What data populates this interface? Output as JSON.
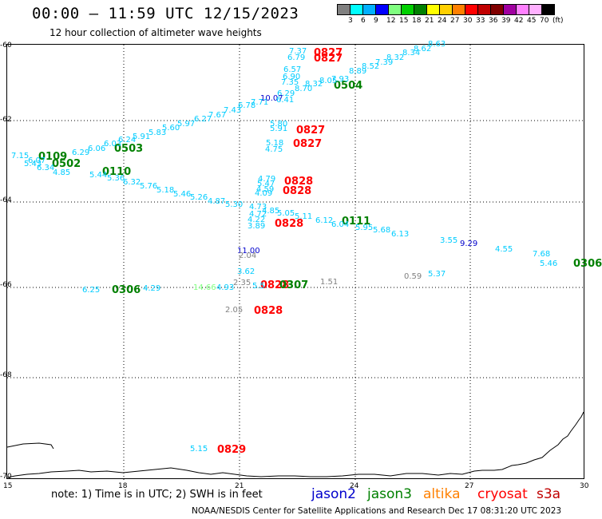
{
  "title": "00:00 – 11:59 UTC 12/15/2023",
  "subtitle": "12 hour collection of altimeter wave heights",
  "legend": {
    "colors": [
      "#808080",
      "#00ffff",
      "#00b0ff",
      "#0000ff",
      "#80ff80",
      "#00d000",
      "#008000",
      "#ffff00",
      "#ffd000",
      "#ff8000",
      "#ff0000",
      "#c00000",
      "#800000",
      "#a000a0",
      "#ff80ff",
      "#ffb0ff",
      "#000000"
    ],
    "labels": [
      "3",
      "6",
      "9",
      "12",
      "15",
      "18",
      "21",
      "24",
      "27",
      "30",
      "33",
      "36",
      "39",
      "42",
      "45",
      "70",
      "(ft)"
    ]
  },
  "axes": {
    "y_labels": [
      "-60",
      "-62",
      "-64",
      "-66",
      "-68",
      "-70"
    ],
    "x_labels": [
      "15",
      "18",
      "21",
      "24",
      "27",
      "30"
    ]
  },
  "passes": [
    {
      "text": "0827",
      "color": "#ff0000"
    },
    {
      "text": "0827",
      "color": "#ff0000"
    },
    {
      "text": "0504",
      "color": "#008000"
    },
    {
      "text": "0827",
      "color": "#ff0000"
    },
    {
      "text": "0827",
      "color": "#ff0000"
    },
    {
      "text": "0109",
      "color": "#008000"
    },
    {
      "text": "0503",
      "color": "#008000"
    },
    {
      "text": "0502",
      "color": "#008000"
    },
    {
      "text": "0110",
      "color": "#008000"
    },
    {
      "text": "0828",
      "color": "#ff0000"
    },
    {
      "text": "0828",
      "color": "#ff0000"
    },
    {
      "text": "0111",
      "color": "#008000"
    },
    {
      "text": "0828",
      "color": "#ff0000"
    },
    {
      "text": "0306",
      "color": "#008000"
    },
    {
      "text": "0306",
      "color": "#008000"
    },
    {
      "text": "0828",
      "color": "#ff0000"
    },
    {
      "text": "0307",
      "color": "#008000"
    },
    {
      "text": "0828",
      "color": "#ff0000"
    },
    {
      "text": "0829",
      "color": "#ff0000"
    }
  ],
  "points": [
    {
      "v": "7.37",
      "c": "#00ccff"
    },
    {
      "v": "6.79",
      "c": "#00ccff"
    },
    {
      "v": "8.63",
      "c": "#00ccff"
    },
    {
      "v": "8.62",
      "c": "#00ccff"
    },
    {
      "v": "8.34",
      "c": "#00ccff"
    },
    {
      "v": "8.32",
      "c": "#00ccff"
    },
    {
      "v": "7.39",
      "c": "#00ccff"
    },
    {
      "v": "8.52",
      "c": "#00ccff"
    },
    {
      "v": "8.89",
      "c": "#00ccff"
    },
    {
      "v": "6.57",
      "c": "#00ccff"
    },
    {
      "v": "6.90",
      "c": "#00ccff"
    },
    {
      "v": "7.93",
      "c": "#00ccff"
    },
    {
      "v": "8.05",
      "c": "#00ccff"
    },
    {
      "v": "7.35",
      "c": "#00ccff"
    },
    {
      "v": "8.32",
      "c": "#00ccff"
    },
    {
      "v": "8.70",
      "c": "#00ccff"
    },
    {
      "v": "6.29",
      "c": "#00ccff"
    },
    {
      "v": "10.07",
      "c": "#0000cc"
    },
    {
      "v": "6.41",
      "c": "#00ccff"
    },
    {
      "v": "7.71",
      "c": "#00ccff"
    },
    {
      "v": "6.78",
      "c": "#00ccff"
    },
    {
      "v": "7.43",
      "c": "#00ccff"
    },
    {
      "v": "7.67",
      "c": "#00ccff"
    },
    {
      "v": "6.27",
      "c": "#00ccff"
    },
    {
      "v": "5.97",
      "c": "#00ccff"
    },
    {
      "v": "5.60",
      "c": "#00ccff"
    },
    {
      "v": "5.83",
      "c": "#00ccff"
    },
    {
      "v": "5.91",
      "c": "#00ccff"
    },
    {
      "v": "6.24",
      "c": "#00ccff"
    },
    {
      "v": "6.03",
      "c": "#00ccff"
    },
    {
      "v": "6.06",
      "c": "#00ccff"
    },
    {
      "v": "6.29",
      "c": "#00ccff"
    },
    {
      "v": "7.15",
      "c": "#00ccff"
    },
    {
      "v": "5.43",
      "c": "#00ccff"
    },
    {
      "v": "6.07",
      "c": "#00ccff"
    },
    {
      "v": "6.34",
      "c": "#00ccff"
    },
    {
      "v": "4.85",
      "c": "#00ccff"
    },
    {
      "v": "5.44",
      "c": "#00ccff"
    },
    {
      "v": "5.36",
      "c": "#00ccff"
    },
    {
      "v": "6.32",
      "c": "#00ccff"
    },
    {
      "v": "5.76",
      "c": "#00ccff"
    },
    {
      "v": "5.18",
      "c": "#00ccff"
    },
    {
      "v": "5.46",
      "c": "#00ccff"
    },
    {
      "v": "5.26",
      "c": "#00ccff"
    },
    {
      "v": "4.87",
      "c": "#00ccff"
    },
    {
      "v": "5.30",
      "c": "#00ccff"
    },
    {
      "v": "4.73",
      "c": "#00ccff"
    },
    {
      "v": "5.80",
      "c": "#00ccff"
    },
    {
      "v": "5.91",
      "c": "#00ccff"
    },
    {
      "v": "5.18",
      "c": "#00ccff"
    },
    {
      "v": "4.75",
      "c": "#00ccff"
    },
    {
      "v": "4.79",
      "c": "#00ccff"
    },
    {
      "v": "5.47",
      "c": "#00ccff"
    },
    {
      "v": "4.59",
      "c": "#00ccff"
    },
    {
      "v": "4.09",
      "c": "#00ccff"
    },
    {
      "v": "4.85",
      "c": "#00ccff"
    },
    {
      "v": "5.05",
      "c": "#00ccff"
    },
    {
      "v": "5.11",
      "c": "#00ccff"
    },
    {
      "v": "4.72",
      "c": "#00ccff"
    },
    {
      "v": "4.22",
      "c": "#00ccff"
    },
    {
      "v": "3.89",
      "c": "#00ccff"
    },
    {
      "v": "6.12",
      "c": "#00ccff"
    },
    {
      "v": "6.04",
      "c": "#00ccff"
    },
    {
      "v": "5.95",
      "c": "#00ccff"
    },
    {
      "v": "5.68",
      "c": "#00ccff"
    },
    {
      "v": "6.13",
      "c": "#00ccff"
    },
    {
      "v": "3.55",
      "c": "#00ccff"
    },
    {
      "v": "9.29",
      "c": "#0000cc"
    },
    {
      "v": "4.55",
      "c": "#00ccff"
    },
    {
      "v": "7.68",
      "c": "#00ccff"
    },
    {
      "v": "5.46",
      "c": "#00ccff"
    },
    {
      "v": "11.00",
      "c": "#0000cc"
    },
    {
      "v": "2.04",
      "c": "#808080"
    },
    {
      "v": "3.62",
      "c": "#00ccff"
    },
    {
      "v": "2.35",
      "c": "#808080"
    },
    {
      "v": "5.5",
      "c": "#00ccff"
    },
    {
      "v": "1.51",
      "c": "#808080"
    },
    {
      "v": "0.59",
      "c": "#808080"
    },
    {
      "v": "5.37",
      "c": "#00ccff"
    },
    {
      "v": "6.25",
      "c": "#00ccff"
    },
    {
      "v": "4.29",
      "c": "#00ccff"
    },
    {
      "v": "14.66",
      "c": "#80ff80"
    },
    {
      "v": "4.93",
      "c": "#00ccff"
    },
    {
      "v": "2.05",
      "c": "#808080"
    },
    {
      "v": "5.15",
      "c": "#00ccff"
    }
  ],
  "footer": {
    "note": "note: 1) Time is in UTC; 2) SWH is in feet",
    "satellites": [
      {
        "name": "jason2",
        "color": "#0000cc"
      },
      {
        "name": "jason3",
        "color": "#008000"
      },
      {
        "name": "altika",
        "color": "#ff8000"
      },
      {
        "name": "cryosat",
        "color": "#ff0000"
      },
      {
        "name": "s3a",
        "color": "#c00000"
      }
    ],
    "credit": "NOAA/NESDIS Center for Satellite Applications and Research   Dec 17 08:31:20 UTC 2023"
  }
}
